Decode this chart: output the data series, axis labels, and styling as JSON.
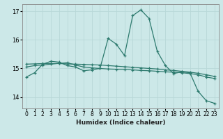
{
  "xlabel": "Humidex (Indice chaleur)",
  "ylabel": "",
  "bg_color": "#cce8e8",
  "grid_color": "#b8d8d8",
  "line_color": "#2d7a6e",
  "xlim": [
    -0.5,
    23.5
  ],
  "ylim": [
    13.6,
    17.25
  ],
  "yticks": [
    14,
    15,
    16,
    17
  ],
  "xticks": [
    0,
    1,
    2,
    3,
    4,
    5,
    6,
    7,
    8,
    9,
    10,
    11,
    12,
    13,
    14,
    15,
    16,
    17,
    18,
    19,
    20,
    21,
    22,
    23
  ],
  "series": [
    [
      14.7,
      14.85,
      15.15,
      15.25,
      15.22,
      15.1,
      15.05,
      14.92,
      14.95,
      15.0,
      16.05,
      15.85,
      15.45,
      16.85,
      17.05,
      16.75,
      15.6,
      15.1,
      14.82,
      14.88,
      14.85,
      14.2,
      13.87,
      13.78
    ],
    [
      15.05,
      15.1,
      15.12,
      15.15,
      15.18,
      15.2,
      15.12,
      15.05,
      15.02,
      15.0,
      14.98,
      14.97,
      14.96,
      14.95,
      14.93,
      14.92,
      14.9,
      14.88,
      14.87,
      14.85,
      14.82,
      14.78,
      14.7,
      14.65
    ],
    [
      15.15,
      15.16,
      15.17,
      15.17,
      15.17,
      15.16,
      15.15,
      15.14,
      15.13,
      15.12,
      15.1,
      15.08,
      15.06,
      15.04,
      15.02,
      15.0,
      14.98,
      14.95,
      14.93,
      14.9,
      14.87,
      14.83,
      14.78,
      14.72
    ]
  ],
  "xlabel_fontsize": 6.5,
  "tick_fontsize": 5.5,
  "ytick_fontsize": 6.0
}
